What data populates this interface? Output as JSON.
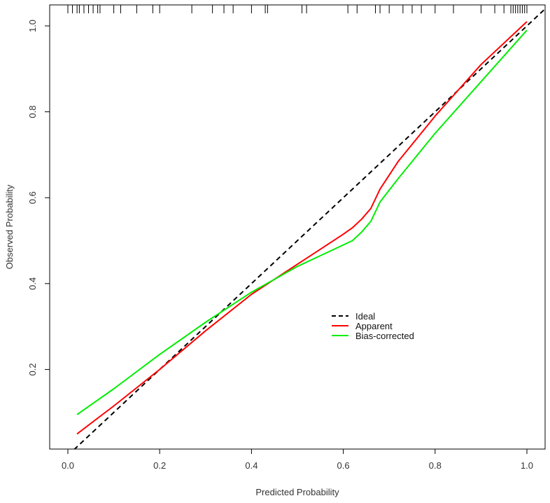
{
  "chart_data": {
    "type": "line",
    "xlabel": "Predicted Probability",
    "ylabel": "Observed Probability",
    "xlim": [
      0,
      1.04
    ],
    "ylim": [
      0,
      1.04
    ],
    "x_ticks": [
      0.0,
      0.2,
      0.4,
      0.6,
      0.8,
      1.0
    ],
    "x_tick_labels": [
      "0.0",
      "0.2",
      "0.4",
      "0.6",
      "0.8",
      "1.0"
    ],
    "y_ticks": [
      0.2,
      0.4,
      0.6,
      0.8,
      1.0
    ],
    "y_tick_labels": [
      "0.2",
      "0.4",
      "0.6",
      "0.8",
      "1.0"
    ],
    "grid": false,
    "legend_position": "center-right",
    "series": [
      {
        "name": "Ideal",
        "color": "#000000",
        "dash": "dashed",
        "x": [
          0.0,
          1.04
        ],
        "y": [
          0.0,
          1.04
        ]
      },
      {
        "name": "Apparent",
        "color": "#ff0000",
        "dash": "solid",
        "x": [
          0.02,
          0.1,
          0.2,
          0.3,
          0.4,
          0.45,
          0.5,
          0.55,
          0.6,
          0.62,
          0.64,
          0.66,
          0.68,
          0.72,
          0.8,
          0.9,
          1.0
        ],
        "y": [
          0.05,
          0.115,
          0.2,
          0.29,
          0.375,
          0.41,
          0.445,
          0.48,
          0.515,
          0.53,
          0.55,
          0.575,
          0.62,
          0.685,
          0.79,
          0.91,
          1.01
        ]
      },
      {
        "name": "Bias-corrected",
        "color": "#00ee00",
        "dash": "solid",
        "x": [
          0.02,
          0.1,
          0.2,
          0.3,
          0.4,
          0.45,
          0.5,
          0.55,
          0.6,
          0.62,
          0.64,
          0.66,
          0.68,
          0.72,
          0.8,
          0.9,
          1.0
        ],
        "y": [
          0.095,
          0.155,
          0.235,
          0.31,
          0.38,
          0.41,
          0.44,
          0.465,
          0.49,
          0.5,
          0.52,
          0.545,
          0.59,
          0.645,
          0.75,
          0.87,
          0.99
        ]
      }
    ],
    "rug_x": [
      0.0,
      0.01,
      0.02,
      0.025,
      0.035,
      0.045,
      0.055,
      0.065,
      0.07,
      0.1,
      0.115,
      0.15,
      0.185,
      0.2,
      0.27,
      0.315,
      0.34,
      0.36,
      0.4,
      0.43,
      0.435,
      0.51,
      0.52,
      0.61,
      0.63,
      0.67,
      0.68,
      0.7,
      0.73,
      0.75,
      0.77,
      0.8,
      0.84,
      0.9,
      0.93,
      0.95,
      0.965,
      0.97,
      0.975,
      0.98,
      0.985,
      0.99,
      0.995,
      1.0
    ]
  }
}
